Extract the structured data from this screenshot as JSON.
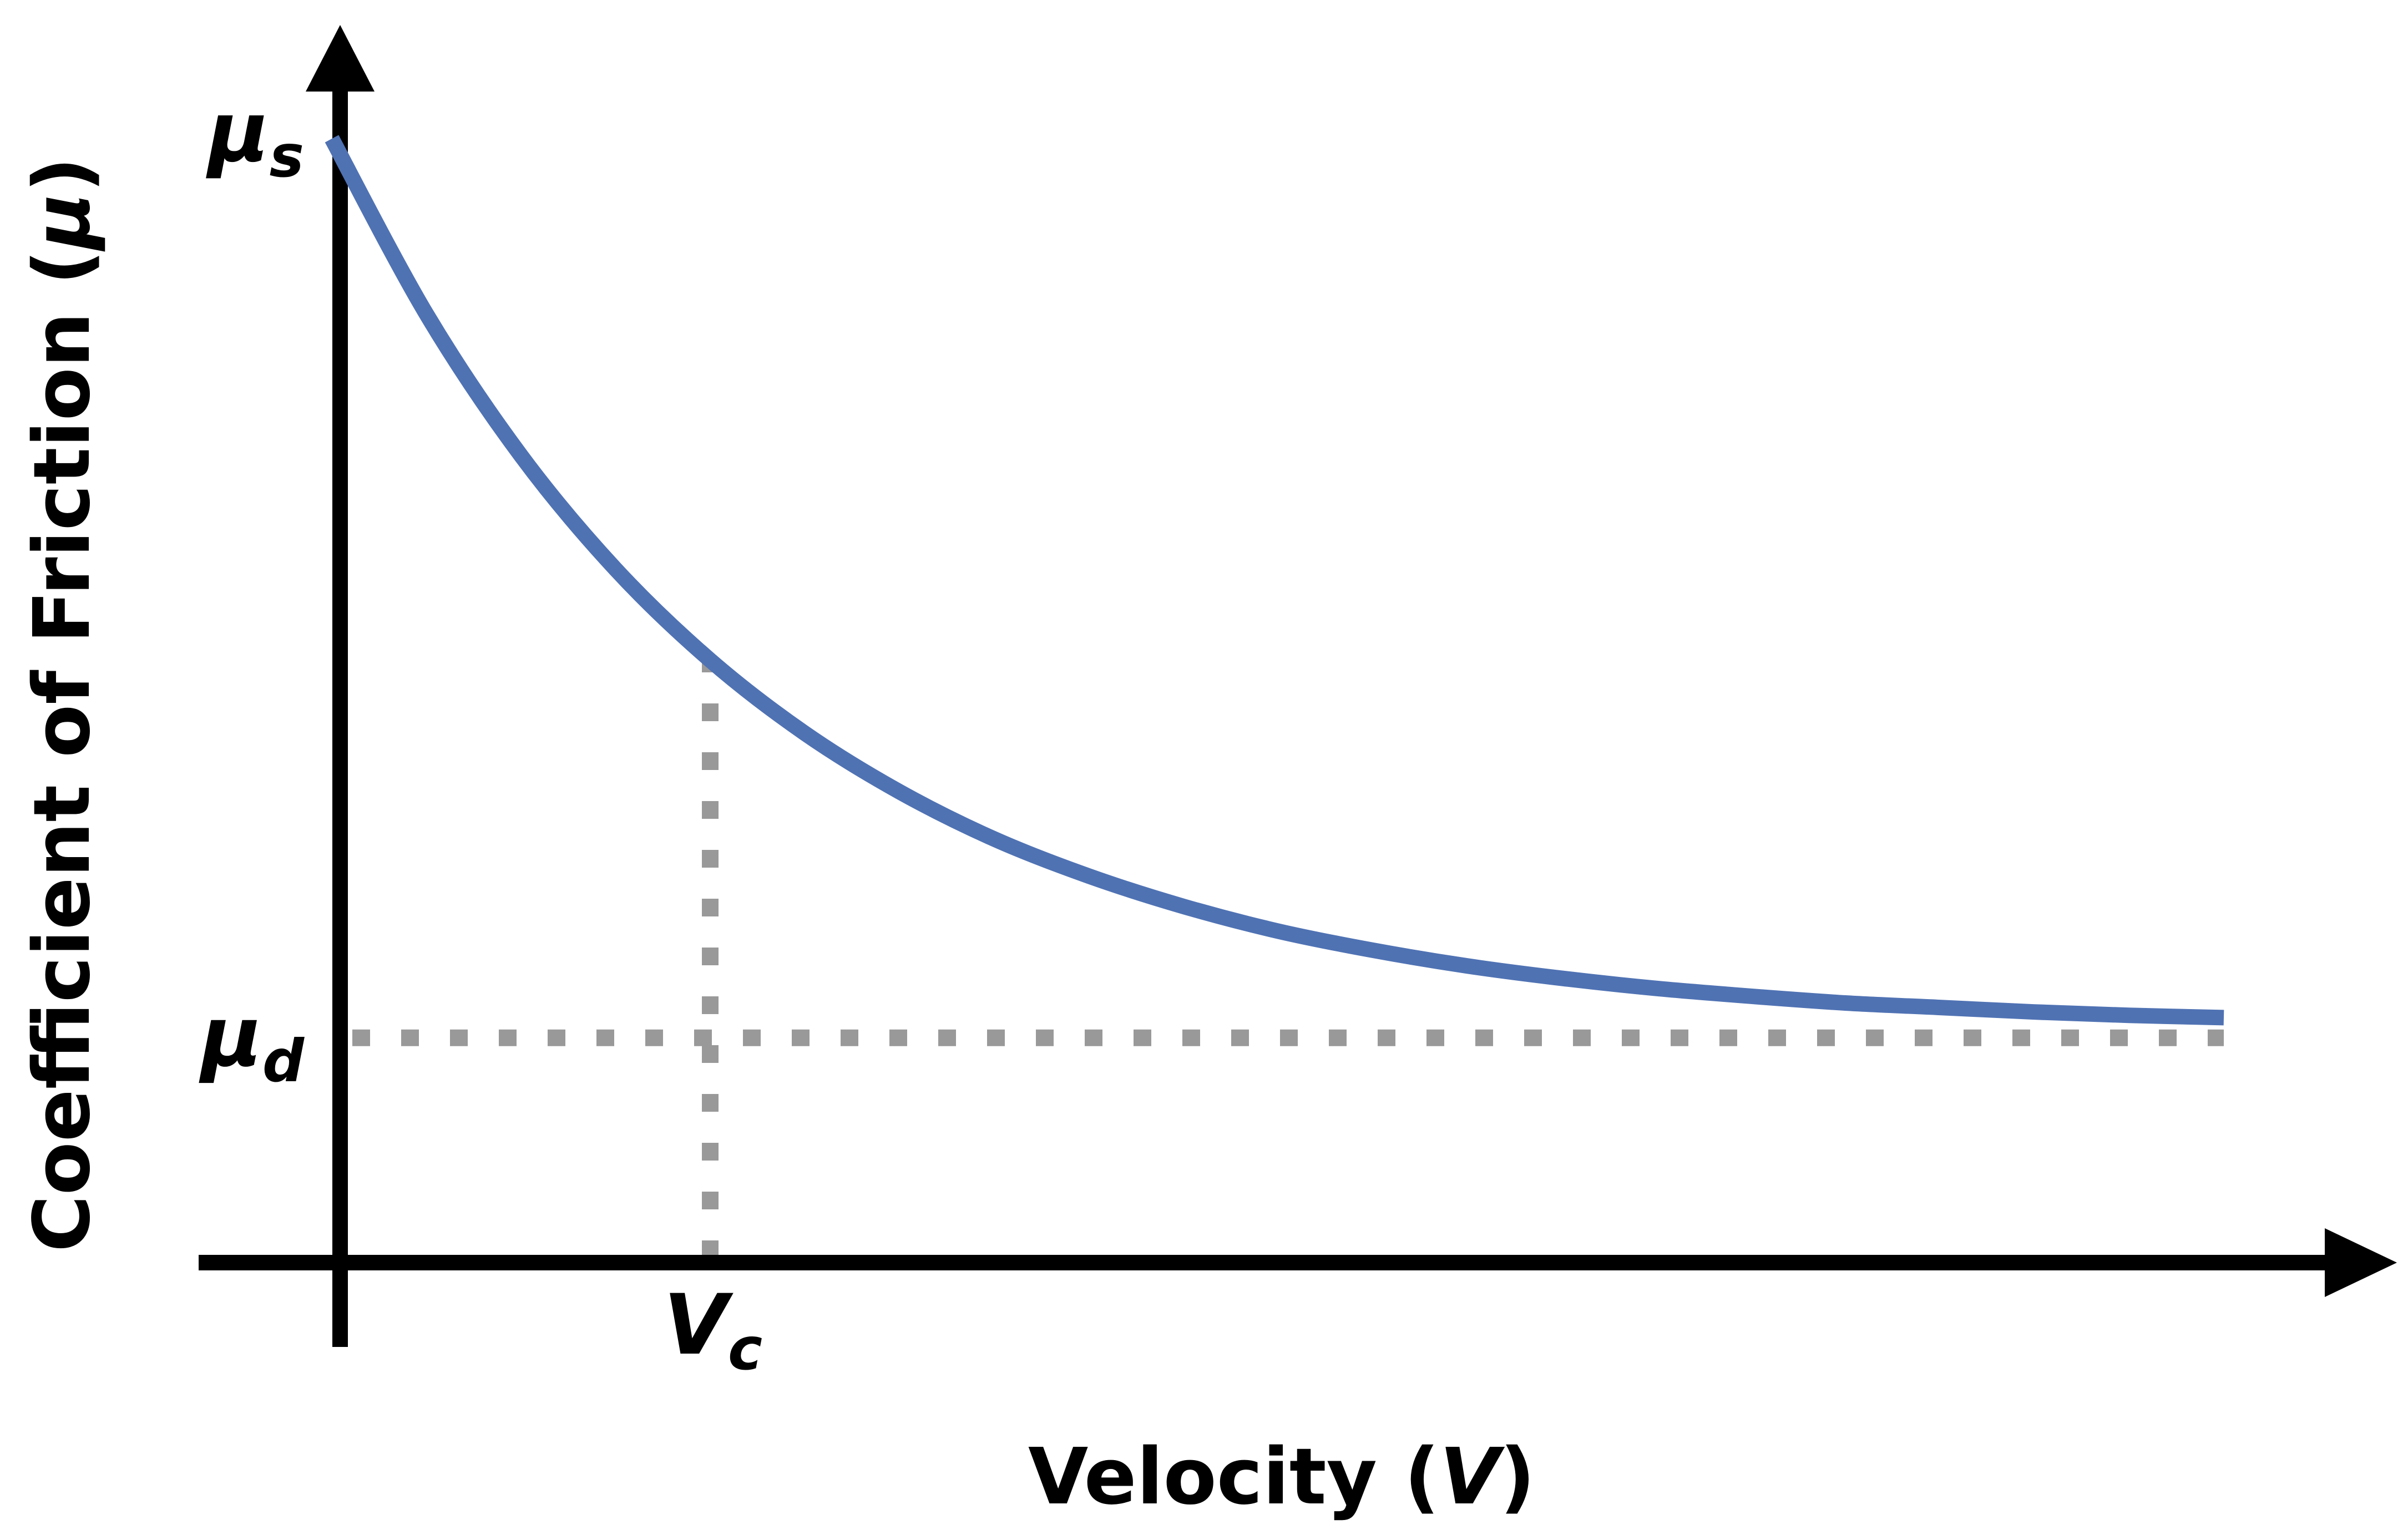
{
  "chart_data": {
    "type": "line",
    "title": "",
    "xlabel_text": "Velocity (",
    "xlabel_symbol": "V",
    "xlabel_close": ")",
    "ylabel_text": "Coefficient of Friction (",
    "ylabel_symbol": "μ",
    "ylabel_close": ")",
    "grid": false,
    "xlim": [
      0,
      1
    ],
    "ylim": [
      0,
      1
    ],
    "series": [
      {
        "color": "#4f72b3",
        "x": [
          0,
          0.05,
          0.1,
          0.15,
          0.2,
          0.25,
          0.3,
          0.35,
          0.4,
          0.45,
          0.5,
          0.55,
          0.6,
          0.65,
          0.7,
          0.75,
          0.8,
          0.85,
          0.9,
          0.95,
          1.0
        ],
        "y": [
          1.0,
          0.844,
          0.718,
          0.617,
          0.536,
          0.471,
          0.419,
          0.377,
          0.344,
          0.317,
          0.295,
          0.278,
          0.264,
          0.253,
          0.244,
          0.237,
          0.231,
          0.227,
          0.223,
          0.22,
          0.218
        ]
      }
    ],
    "annotations": {
      "mu_s": {
        "y": 1.0,
        "main": "μ",
        "sub": "s"
      },
      "mu_d": {
        "y": 0.2,
        "main": "μ",
        "sub": "d"
      },
      "v_c": {
        "x": 0.2,
        "main": "V",
        "sub": "c"
      }
    },
    "guide_color": "#999999",
    "axis_color": "#000000"
  }
}
